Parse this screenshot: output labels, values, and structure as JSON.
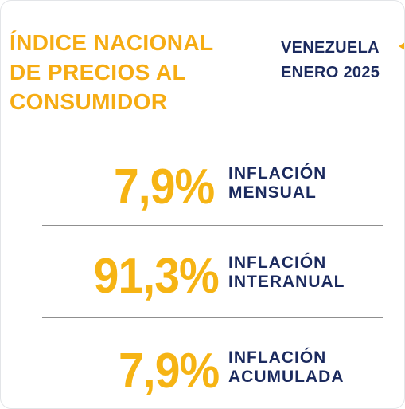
{
  "header": {
    "title_lines": [
      "ÍNDICE NACIONAL",
      "DE PRECIOS AL",
      "CONSUMIDOR"
    ],
    "country": "VENEZUELA",
    "period": "ENERO 2025"
  },
  "indicators": [
    {
      "value": "7,9%",
      "label_line1": "INFLACIÓN",
      "label_line2": "MENSUAL"
    },
    {
      "value": "91,3%",
      "label_line1": "INFLACIÓN",
      "label_line2": "INTERANUAL"
    },
    {
      "value": "7,9%",
      "label_line1": "INFLACIÓN",
      "label_line2": "ACUMULADA"
    }
  ],
  "colors": {
    "accent_yellow": "#f6ac13",
    "navy": "#1b2a5e",
    "divider": "#8f8f8f"
  }
}
